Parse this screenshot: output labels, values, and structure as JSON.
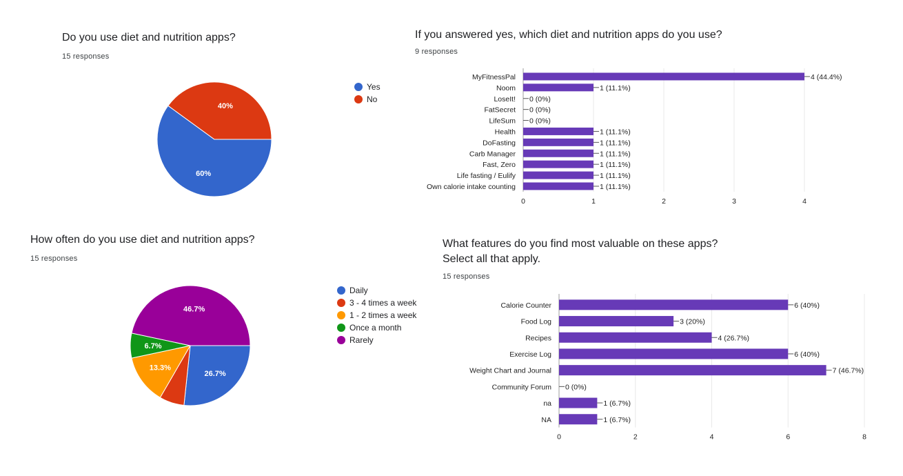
{
  "colors": {
    "bar": "#673ab7",
    "grid": "#e8e8e8",
    "axis": "#9e9e9e",
    "pie": [
      "#3366cc",
      "#dc3912",
      "#ff9900",
      "#109618",
      "#990099"
    ]
  },
  "chart_data": [
    {
      "type": "pie",
      "title": "Do you use diet and nutrition apps?",
      "subtitle": "15 responses",
      "labels": [
        "Yes",
        "No"
      ],
      "values": [
        60,
        40
      ],
      "slice_labels": [
        "60%",
        "40%"
      ],
      "legend_position": "right"
    },
    {
      "type": "bar",
      "orientation": "horizontal",
      "title": "If you answered yes, which diet and nutrition apps do you use?",
      "subtitle": "9 responses",
      "categories": [
        "MyFitnessPal",
        "Noom",
        "LoseIt!",
        "FatSecret",
        "LifeSum",
        "Health",
        "DoFasting",
        "Carb Manager",
        "Fast, Zero",
        "Life fasting / Eulify",
        "Own calorie intake counting"
      ],
      "values": [
        4,
        1,
        0,
        0,
        0,
        1,
        1,
        1,
        1,
        1,
        1
      ],
      "value_labels": [
        "4 (44.4%)",
        "1 (11.1%)",
        "0 (0%)",
        "0 (0%)",
        "0 (0%)",
        "1 (11.1%)",
        "1 (11.1%)",
        "1 (11.1%)",
        "1 (11.1%)",
        "1 (11.1%)",
        "1 (11.1%)"
      ],
      "xlim": [
        0,
        4
      ],
      "xticks": [
        "0",
        "1",
        "2",
        "3",
        "4"
      ],
      "grid": true
    },
    {
      "type": "pie",
      "title": "How often do you use diet and nutrition apps?",
      "subtitle": "15 responses",
      "labels": [
        "Daily",
        "3 - 4 times a week",
        "1 - 2 times a week",
        "Once a month",
        "Rarely"
      ],
      "values": [
        26.7,
        6.7,
        13.3,
        6.7,
        46.7
      ],
      "slice_labels": [
        "26.7%",
        "",
        "13.3%",
        "6.7%",
        "46.7%"
      ],
      "legend_position": "right"
    },
    {
      "type": "bar",
      "orientation": "horizontal",
      "title": "What features do you find most valuable on these apps?",
      "title_line2": "Select all that apply.",
      "subtitle": "15 responses",
      "categories": [
        "Calorie Counter",
        "Food Log",
        "Recipes",
        "Exercise Log",
        "Weight Chart and Journal",
        "Community Forum",
        "na",
        "NA"
      ],
      "values": [
        6,
        3,
        4,
        6,
        7,
        0,
        1,
        1
      ],
      "value_labels": [
        "6 (40%)",
        "3 (20%)",
        "4 (26.7%)",
        "6 (40%)",
        "7 (46.7%)",
        "0 (0%)",
        "1 (6.7%)",
        "1 (6.7%)"
      ],
      "xlim": [
        0,
        8
      ],
      "xticks": [
        "0",
        "2",
        "4",
        "6",
        "8"
      ],
      "grid": true
    }
  ]
}
